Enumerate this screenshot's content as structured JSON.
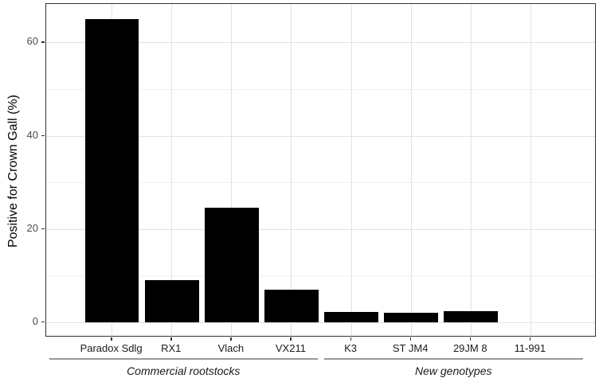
{
  "chart_data": {
    "type": "bar",
    "title": "",
    "xlabel": "",
    "ylabel": "Positive for Crown Gall (%)",
    "categories": [
      "Paradox Sdlg",
      "RX1",
      "Vlach",
      "VX211",
      "K3",
      "ST JM4",
      "29JM 8",
      "11-991"
    ],
    "values": [
      65,
      9,
      24.5,
      7,
      2.2,
      2.1,
      2.4,
      0
    ],
    "y_ticks": [
      0,
      20,
      40,
      60
    ],
    "y_minor_ticks": [
      10,
      30,
      50
    ],
    "ylim": [
      -3.25,
      68.25
    ],
    "grid": "major+minor",
    "legend": "none",
    "groups": [
      {
        "label": "Commercial rootstocks",
        "first": 0,
        "last": 3
      },
      {
        "label": "New genotypes",
        "first": 4,
        "last": 7
      }
    ]
  },
  "colors": {
    "bar": "#000000",
    "panel_border": "#333333",
    "grid_major": "#e2e2e2",
    "grid_minor": "#f0f0f0",
    "tick_mark": "#333333",
    "y_axis_text": "#4d4d4d",
    "x_axis_text": "#1a1a1a",
    "group_line": "#999999",
    "background": "#ffffff"
  }
}
